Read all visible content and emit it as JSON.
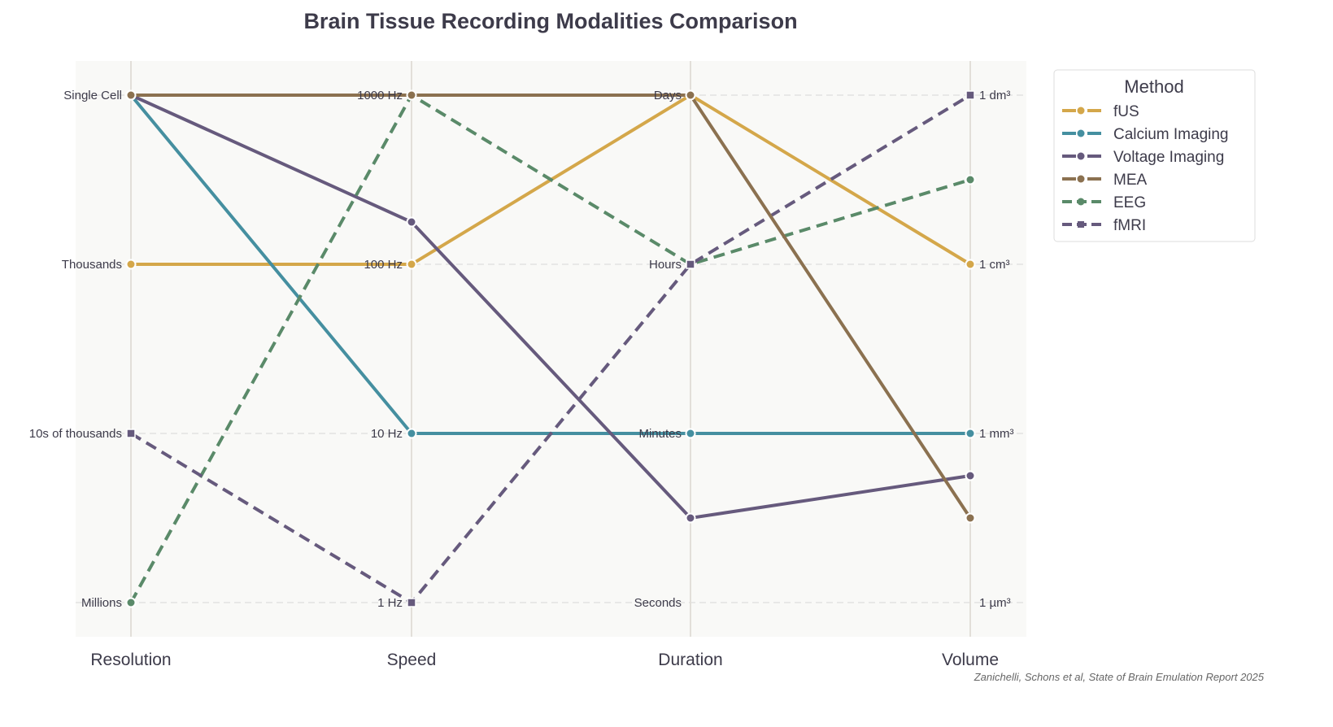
{
  "chart_data": {
    "type": "parallel-coordinates",
    "title": "Brain Tissue Recording Modalities Comparison",
    "axes": [
      {
        "name": "Resolution",
        "ticks": [
          "Millions",
          "10s of thousands",
          "Thousands",
          "Single Cell"
        ]
      },
      {
        "name": "Speed",
        "ticks": [
          "1 Hz",
          "10 Hz",
          "100 Hz",
          "1000 Hz"
        ]
      },
      {
        "name": "Duration",
        "ticks": [
          "Seconds",
          "Minutes",
          "Hours",
          "Days"
        ]
      },
      {
        "name": "Volume",
        "ticks": [
          "1 µm³",
          "1 mm³",
          "1 cm³",
          "1 dm³"
        ]
      }
    ],
    "scale": [
      0,
      3
    ],
    "legend": {
      "title": "Method",
      "placement": "outside-top-right"
    },
    "series": [
      {
        "name": "fUS",
        "values": [
          2,
          2,
          3,
          2
        ],
        "color": "#d4a74a",
        "dash": false,
        "marker": "circle"
      },
      {
        "name": "Calcium Imaging",
        "values": [
          3,
          1,
          1,
          1
        ],
        "color": "#458fa0",
        "dash": false,
        "marker": "circle"
      },
      {
        "name": "Voltage Imaging",
        "values": [
          3,
          2.25,
          0.5,
          0.75
        ],
        "color": "#665a7d",
        "dash": false,
        "marker": "circle"
      },
      {
        "name": "MEA",
        "values": [
          3,
          3,
          3,
          0.5
        ],
        "color": "#8b7150",
        "dash": false,
        "marker": "circle"
      },
      {
        "name": "EEG",
        "values": [
          0,
          3,
          2,
          2.5
        ],
        "color": "#5a8a69",
        "dash": true,
        "marker": "circle"
      },
      {
        "name": "fMRI",
        "values": [
          1,
          0,
          2,
          3
        ],
        "color": "#665a7d",
        "dash": true,
        "marker": "square"
      }
    ],
    "credit": "Zanichelli, Schons et al, State of Brain Emulation Report 2025"
  }
}
